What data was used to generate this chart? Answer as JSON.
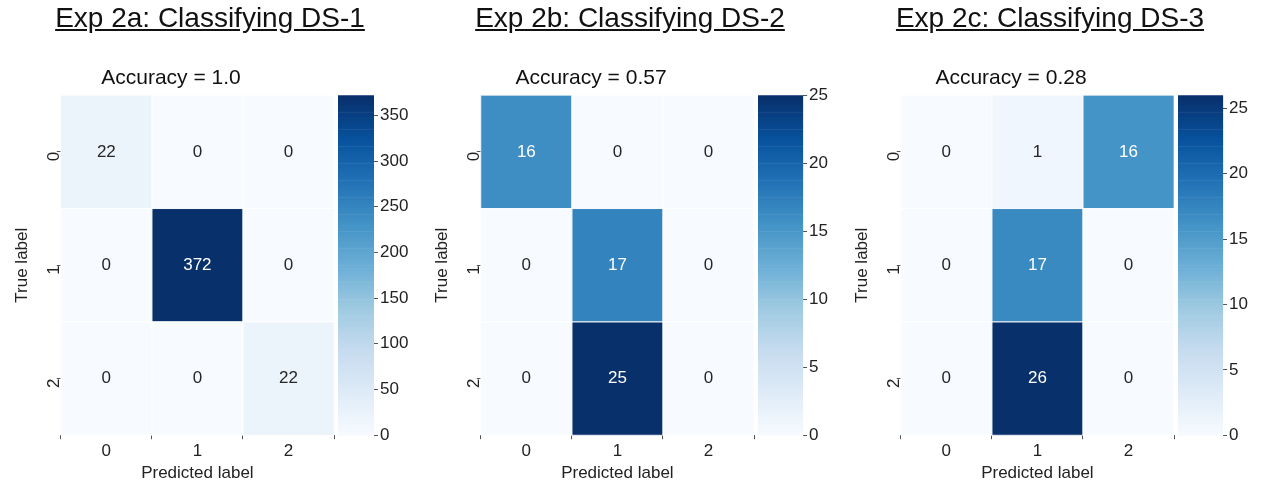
{
  "chart_data": [
    {
      "type": "heatmap",
      "title": "Exp 2a: Classifying DS-1",
      "subtitle": "Accuracy = 1.0",
      "xlabel": "Predicted label",
      "ylabel": "True label",
      "categories": [
        "0",
        "1",
        "2"
      ],
      "y_categories": [
        "0",
        "1",
        "2"
      ],
      "cells": [
        [
          22,
          0,
          0
        ],
        [
          0,
          372,
          0
        ],
        [
          0,
          0,
          22
        ]
      ],
      "clim": [
        0,
        372
      ],
      "cticks": [
        0,
        50,
        100,
        150,
        200,
        250,
        300,
        350
      ],
      "data_labels": true
    },
    {
      "type": "heatmap",
      "title": "Exp 2b: Classifying DS-2",
      "subtitle": "Accuracy = 0.57",
      "xlabel": "Predicted label",
      "ylabel": "True label",
      "categories": [
        "0",
        "1",
        "2"
      ],
      "y_categories": [
        "0",
        "1",
        "2"
      ],
      "cells": [
        [
          16,
          0,
          0
        ],
        [
          0,
          17,
          0
        ],
        [
          0,
          25,
          0
        ]
      ],
      "clim": [
        0,
        25
      ],
      "cticks": [
        0,
        5,
        10,
        15,
        20,
        25
      ],
      "data_labels": true
    },
    {
      "type": "heatmap",
      "title": "Exp 2c: Classifying DS-3",
      "subtitle": "Accuracy = 0.28",
      "xlabel": "Predicted label",
      "ylabel": "True label",
      "categories": [
        "0",
        "1",
        "2"
      ],
      "y_categories": [
        "0",
        "1",
        "2"
      ],
      "cells": [
        [
          0,
          1,
          16
        ],
        [
          0,
          17,
          0
        ],
        [
          0,
          26,
          0
        ]
      ],
      "clim": [
        0,
        26
      ],
      "cticks": [
        0,
        5,
        10,
        15,
        20,
        25
      ],
      "data_labels": true
    }
  ]
}
